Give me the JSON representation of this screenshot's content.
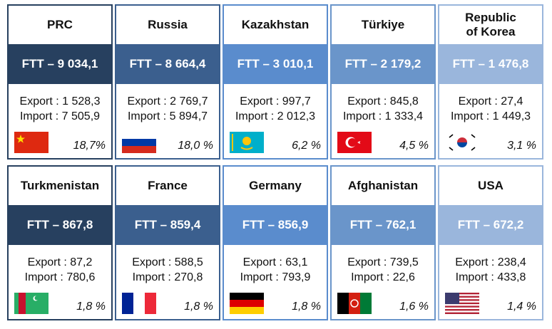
{
  "cards": [
    {
      "name": [
        "PRC"
      ],
      "ftt": "FTT – 9 034,1",
      "export": "Export : 1 528,3",
      "import": "Import : 7 505,9",
      "share": "18,7%"
    },
    {
      "name": [
        "Russia"
      ],
      "ftt": "FTT – 8 664,4",
      "export": "Export : 2 769,7",
      "import": "Import : 5 894,7",
      "share": "18,0 %"
    },
    {
      "name": [
        "Kazakhstan"
      ],
      "ftt": "FTT – 3 010,1",
      "export": "Export : 997,7",
      "import": "Import : 2 012,3",
      "share": "6,2 %"
    },
    {
      "name": [
        "Türkiye"
      ],
      "ftt": "FTT – 2 179,2",
      "export": "Export : 845,8",
      "import": "Import : 1 333,4",
      "share": "4,5 %"
    },
    {
      "name": [
        "Republic",
        "of Korea"
      ],
      "ftt": "FTT – 1 476,8",
      "export": "Export : 27,4",
      "import": "Import : 1 449,3",
      "share": "3,1 %"
    },
    {
      "name": [
        "Turkmenistan"
      ],
      "ftt": "FTT – 867,8",
      "export": "Export : 87,2",
      "import": "Import : 780,6",
      "share": "1,8 %"
    },
    {
      "name": [
        "France"
      ],
      "ftt": "FTT – 859,4",
      "export": "Export : 588,5",
      "import": "Import : 270,8",
      "share": "1,8 %"
    },
    {
      "name": [
        "Germany"
      ],
      "ftt": "FTT – 856,9",
      "export": "Export : 63,1",
      "import": "Import : 793,9",
      "share": "1,8 %"
    },
    {
      "name": [
        "Afghanistan"
      ],
      "ftt": "FTT – 762,1",
      "export": "Export : 739,5",
      "import": "Import : 22,6",
      "share": "1,6 %"
    },
    {
      "name": [
        "USA"
      ],
      "ftt": "FTT – 672,2",
      "export": "Export : 238,4",
      "import": "Import : 433,8",
      "share": "1,4 %"
    }
  ]
}
